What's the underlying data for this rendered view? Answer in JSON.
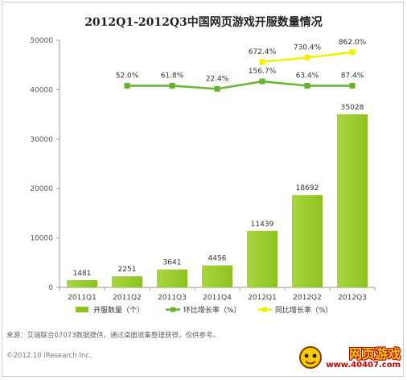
{
  "chart_data": {
    "type": "bar",
    "title": "2012Q1-2012Q3中国网页游戏开服数量情况",
    "categories": [
      "2011Q1",
      "2011Q2",
      "2011Q3",
      "2011Q4",
      "2012Q1",
      "2012Q2",
      "2012Q3"
    ],
    "ylim": [
      0,
      50000
    ],
    "yticks": [
      0,
      10000,
      20000,
      30000,
      40000,
      50000
    ],
    "grid": false,
    "legend_position": "bottom",
    "series": [
      {
        "name": "开服数量（个）",
        "type": "bar",
        "color": "#8dc21f",
        "values": [
          1481,
          2251,
          3641,
          4456,
          11439,
          18692,
          35028
        ],
        "labels": [
          "1481",
          "2251",
          "3641",
          "4456",
          "11439",
          "18692",
          "35028"
        ]
      },
      {
        "name": "环比增长率（%）",
        "type": "line",
        "color": "#66b32e",
        "values": [
          null,
          52.0,
          61.8,
          22.4,
          156.7,
          63.4,
          87.4
        ],
        "labels": [
          "",
          "52.0%",
          "61.8%",
          "22.4%",
          "156.7%",
          "63.4%",
          "87.4%"
        ]
      },
      {
        "name": "同比增长率（%）",
        "type": "line",
        "color": "#f0f000",
        "values": [
          null,
          null,
          null,
          null,
          672.4,
          730.4,
          862.0
        ],
        "labels": [
          "",
          "",
          "",
          "",
          "672.4%",
          "730.4%",
          "862.0%"
        ]
      }
    ]
  },
  "footer": {
    "source": "来源：艾瑞联合07073数据提供，通过桌面收集整理获得，仅供参考。",
    "copyright": "©2012.10 iResearch Inc."
  },
  "watermark": {
    "text": "网页游戏",
    "url": "www.40407.com"
  }
}
